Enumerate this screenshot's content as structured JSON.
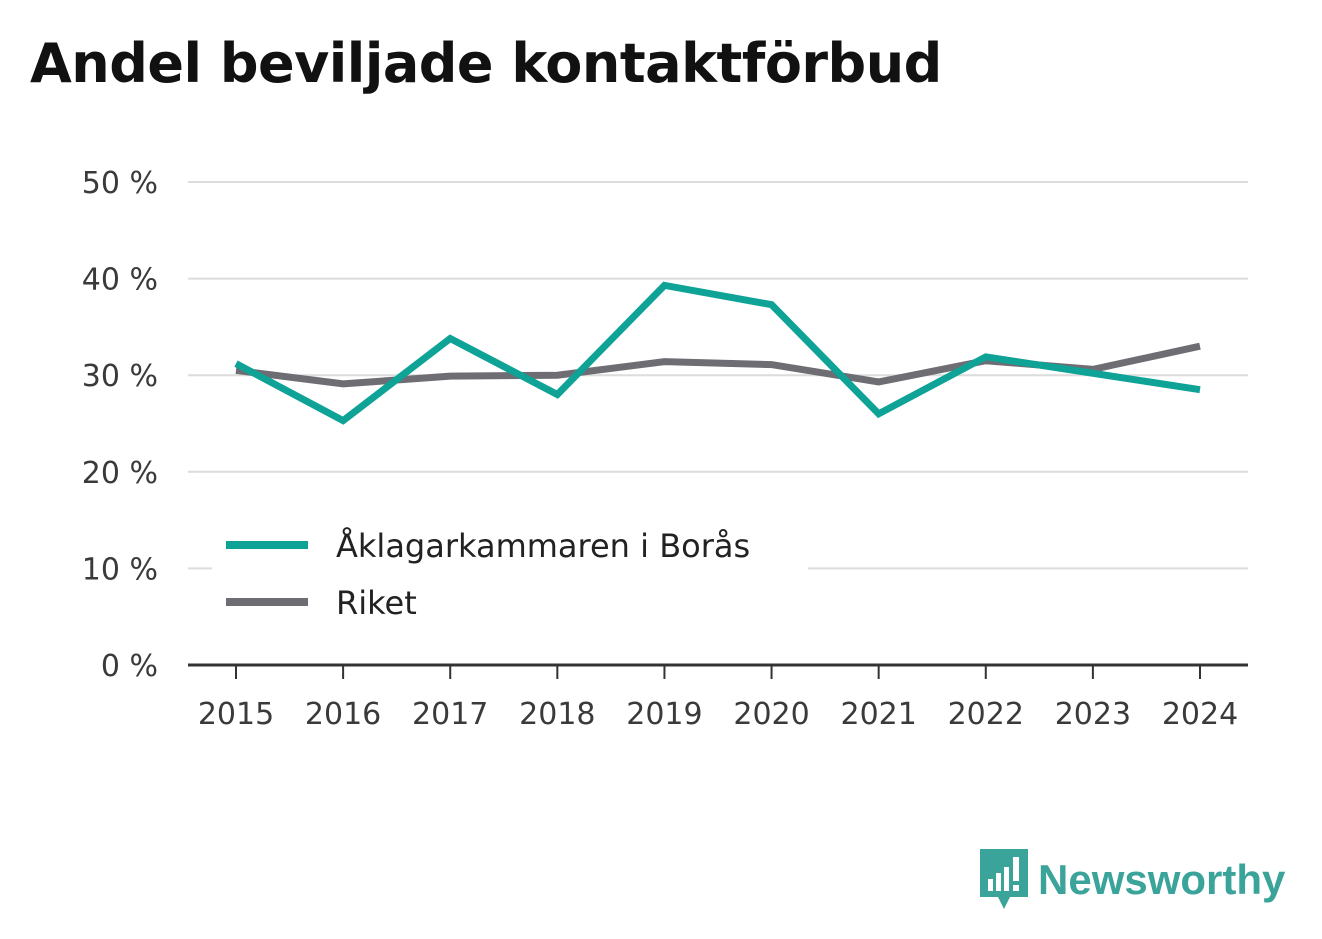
{
  "title": "Andel beviljade kontaktförbud",
  "brand": {
    "name": "Newsworthy",
    "icon": "newsworthy-logo-icon",
    "color": "#3aa39a"
  },
  "chart_data": {
    "type": "line",
    "title": "Andel beviljade kontaktförbud",
    "xlabel": "",
    "ylabel": "",
    "x": [
      "2015",
      "2016",
      "2017",
      "2018",
      "2019",
      "2020",
      "2021",
      "2022",
      "2023",
      "2024"
    ],
    "y_ticks": [
      "0 %",
      "10 %",
      "20 %",
      "30 %",
      "40 %",
      "50 %"
    ],
    "ylim": [
      0,
      50
    ],
    "grid": true,
    "legend_position": "lower-left",
    "series": [
      {
        "name": "Åklagarkammaren i Borås",
        "color": "#0ea396",
        "values": [
          31.2,
          25.3,
          33.8,
          28.0,
          39.3,
          37.3,
          26.0,
          31.9,
          30.2,
          28.5
        ]
      },
      {
        "name": "Riket",
        "color": "#6e6d73",
        "values": [
          30.5,
          29.1,
          29.9,
          30.0,
          31.4,
          31.1,
          29.3,
          31.5,
          30.6,
          33.0
        ]
      }
    ]
  }
}
